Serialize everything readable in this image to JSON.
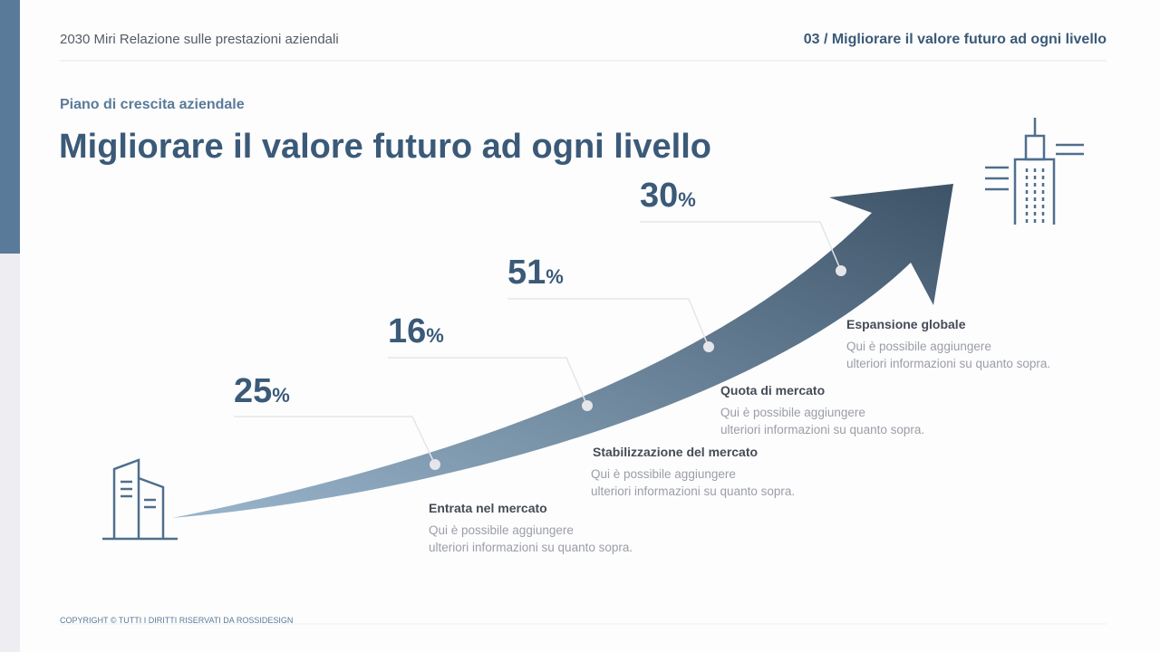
{
  "header": {
    "left": "2030 Miri Relazione sulle prestazioni aziendali",
    "right": "03 / Migliorare il valore futuro ad ogni livello"
  },
  "subtitle": "Piano di crescita aziendale",
  "title": "Migliorare il valore futuro ad ogni livello",
  "milestones": [
    {
      "value": 25,
      "unit": "%",
      "label": "Entrata nel mercato",
      "description": [
        "Qui è possibile aggiungere",
        "ulteriori informazioni su quanto sopra."
      ]
    },
    {
      "value": 16,
      "unit": "%",
      "label": "Stabilizzazione del mercato",
      "description": [
        "Qui è possibile aggiungere",
        "ulteriori informazioni su quanto sopra."
      ]
    },
    {
      "value": 51,
      "unit": "%",
      "label": "Quota di mercato",
      "description": [
        "Qui è possibile aggiungere",
        "ulteriori informazioni su quanto sopra."
      ]
    },
    {
      "value": 30,
      "unit": "%",
      "label": "Espansione globale",
      "description": [
        "Qui è possibile aggiungere",
        "ulteriori informazioni su quanto sopra."
      ]
    }
  ],
  "footer": "COPYRIGHT © TUTTI I DIRITTI RISERVATI DA ROSSIDESIGN"
}
